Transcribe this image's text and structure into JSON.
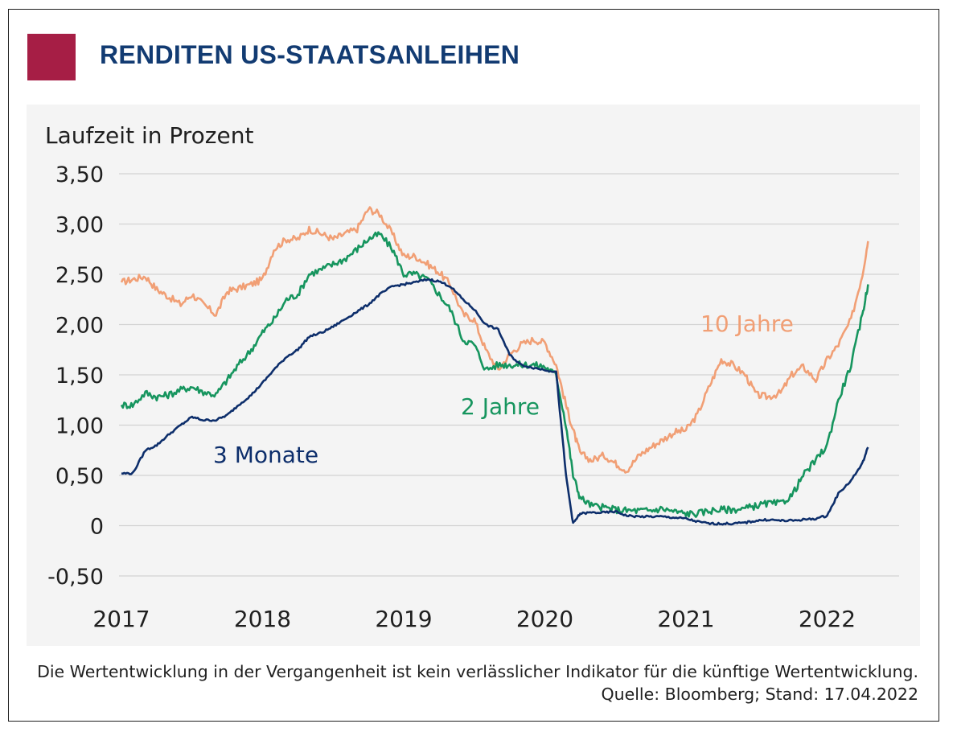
{
  "colors": {
    "accent": "#a61e45",
    "title": "#123b72",
    "panel_bg": "#f4f4f4",
    "grid": "#d2d2d2",
    "axis_text": "#1f1f1f",
    "series_3m": "#0d2e6b",
    "series_2y": "#16955e",
    "series_10y": "#f19f75"
  },
  "header": {
    "title": "RENDITEN US-STAATSANLEIHEN"
  },
  "chart_data": {
    "type": "line",
    "title": "RENDITEN US-STAATSANLEIHEN",
    "ylabel": "Laufzeit in Prozent",
    "xlabel": "",
    "xlim": [
      2017.0,
      2022.35
    ],
    "ylim": [
      -0.5,
      3.5
    ],
    "y_ticks": [
      3.5,
      3.0,
      2.5,
      2.0,
      1.5,
      1.0,
      0.5,
      0,
      -0.5
    ],
    "y_tick_labels": [
      "3,50",
      "3,00",
      "2,50",
      "2,00",
      "1,50",
      "1,00",
      "0,50",
      "0",
      "-0,50"
    ],
    "x_ticks": [
      2017,
      2018,
      2019,
      2020,
      2021,
      2022
    ],
    "x_tick_labels": [
      "2017",
      "2018",
      "2019",
      "2020",
      "2021",
      "2022"
    ],
    "grid": "horizontal",
    "series": [
      {
        "name": "10 Jahre",
        "label": "10 Jahre",
        "color_key": "series_10y",
        "x": [
          2017.0,
          2017.08,
          2017.17,
          2017.25,
          2017.33,
          2017.42,
          2017.5,
          2017.58,
          2017.67,
          2017.75,
          2017.83,
          2017.92,
          2018.0,
          2018.08,
          2018.17,
          2018.25,
          2018.33,
          2018.42,
          2018.5,
          2018.58,
          2018.67,
          2018.75,
          2018.83,
          2018.92,
          2019.0,
          2019.08,
          2019.17,
          2019.25,
          2019.33,
          2019.42,
          2019.5,
          2019.58,
          2019.67,
          2019.75,
          2019.83,
          2019.92,
          2020.0,
          2020.08,
          2020.15,
          2020.2,
          2020.25,
          2020.33,
          2020.42,
          2020.5,
          2020.58,
          2020.67,
          2020.75,
          2020.83,
          2020.92,
          2021.0,
          2021.08,
          2021.17,
          2021.25,
          2021.33,
          2021.42,
          2021.5,
          2021.58,
          2021.67,
          2021.75,
          2021.83,
          2021.92,
          2022.0,
          2022.08,
          2022.17,
          2022.25,
          2022.29
        ],
        "values": [
          2.42,
          2.45,
          2.48,
          2.35,
          2.28,
          2.2,
          2.3,
          2.2,
          2.1,
          2.33,
          2.36,
          2.4,
          2.45,
          2.75,
          2.85,
          2.85,
          2.95,
          2.9,
          2.85,
          2.9,
          2.95,
          3.15,
          3.1,
          2.9,
          2.68,
          2.68,
          2.6,
          2.52,
          2.4,
          2.1,
          2.05,
          1.75,
          1.55,
          1.7,
          1.8,
          1.85,
          1.82,
          1.6,
          1.2,
          0.95,
          0.72,
          0.65,
          0.7,
          0.62,
          0.55,
          0.7,
          0.78,
          0.85,
          0.93,
          0.95,
          1.1,
          1.4,
          1.65,
          1.6,
          1.5,
          1.3,
          1.28,
          1.32,
          1.5,
          1.58,
          1.45,
          1.65,
          1.8,
          2.05,
          2.5,
          2.83
        ]
      },
      {
        "name": "2 Jahre",
        "label": "2 Jahre",
        "color_key": "series_2y",
        "x": [
          2017.0,
          2017.08,
          2017.17,
          2017.25,
          2017.33,
          2017.42,
          2017.5,
          2017.58,
          2017.67,
          2017.75,
          2017.83,
          2017.92,
          2018.0,
          2018.08,
          2018.17,
          2018.25,
          2018.33,
          2018.42,
          2018.5,
          2018.58,
          2018.67,
          2018.75,
          2018.83,
          2018.92,
          2019.0,
          2019.08,
          2019.17,
          2019.25,
          2019.33,
          2019.42,
          2019.5,
          2019.58,
          2019.67,
          2019.75,
          2019.83,
          2019.92,
          2020.0,
          2020.08,
          2020.15,
          2020.2,
          2020.25,
          2020.33,
          2020.42,
          2020.5,
          2020.58,
          2020.67,
          2020.75,
          2020.83,
          2020.92,
          2021.0,
          2021.08,
          2021.17,
          2021.25,
          2021.33,
          2021.42,
          2021.5,
          2021.58,
          2021.67,
          2021.75,
          2021.83,
          2021.92,
          2022.0,
          2022.08,
          2022.17,
          2022.25,
          2022.29
        ],
        "values": [
          1.2,
          1.2,
          1.32,
          1.28,
          1.3,
          1.35,
          1.38,
          1.33,
          1.3,
          1.45,
          1.6,
          1.75,
          1.92,
          2.05,
          2.25,
          2.3,
          2.5,
          2.55,
          2.6,
          2.65,
          2.75,
          2.85,
          2.9,
          2.75,
          2.5,
          2.5,
          2.45,
          2.3,
          2.15,
          1.85,
          1.8,
          1.55,
          1.6,
          1.6,
          1.6,
          1.6,
          1.58,
          1.5,
          1.0,
          0.5,
          0.28,
          0.2,
          0.18,
          0.16,
          0.15,
          0.15,
          0.15,
          0.17,
          0.14,
          0.12,
          0.12,
          0.15,
          0.16,
          0.16,
          0.17,
          0.2,
          0.22,
          0.22,
          0.3,
          0.5,
          0.65,
          0.8,
          1.25,
          1.6,
          2.1,
          2.4
        ]
      },
      {
        "name": "3 Monate",
        "label": "3 Monate",
        "color_key": "series_3m",
        "x": [
          2017.0,
          2017.08,
          2017.17,
          2017.25,
          2017.33,
          2017.42,
          2017.5,
          2017.58,
          2017.67,
          2017.75,
          2017.83,
          2017.92,
          2018.0,
          2018.08,
          2018.17,
          2018.25,
          2018.33,
          2018.42,
          2018.5,
          2018.58,
          2018.67,
          2018.75,
          2018.83,
          2018.92,
          2019.0,
          2019.08,
          2019.17,
          2019.25,
          2019.33,
          2019.42,
          2019.5,
          2019.58,
          2019.67,
          2019.75,
          2019.83,
          2019.92,
          2020.0,
          2020.08,
          2020.15,
          2020.2,
          2020.25,
          2020.33,
          2020.42,
          2020.5,
          2020.58,
          2020.67,
          2020.75,
          2020.83,
          2020.92,
          2021.0,
          2021.08,
          2021.17,
          2021.25,
          2021.33,
          2021.42,
          2021.5,
          2021.58,
          2021.67,
          2021.75,
          2021.83,
          2021.92,
          2022.0,
          2022.08,
          2022.17,
          2022.25,
          2022.29
        ],
        "values": [
          0.52,
          0.52,
          0.75,
          0.8,
          0.9,
          1.0,
          1.08,
          1.05,
          1.05,
          1.1,
          1.2,
          1.3,
          1.42,
          1.55,
          1.68,
          1.75,
          1.88,
          1.92,
          1.98,
          2.05,
          2.13,
          2.2,
          2.3,
          2.38,
          2.4,
          2.42,
          2.45,
          2.43,
          2.38,
          2.25,
          2.15,
          2.0,
          1.95,
          1.7,
          1.6,
          1.57,
          1.55,
          1.53,
          0.5,
          0.02,
          0.12,
          0.13,
          0.13,
          0.14,
          0.1,
          0.09,
          0.09,
          0.09,
          0.08,
          0.07,
          0.04,
          0.02,
          0.02,
          0.02,
          0.03,
          0.05,
          0.06,
          0.05,
          0.05,
          0.06,
          0.07,
          0.1,
          0.32,
          0.45,
          0.62,
          0.78
        ]
      }
    ],
    "annotations": [
      {
        "series": "10 Jahre",
        "text": "10 Jahre"
      },
      {
        "series": "2 Jahre",
        "text": "2 Jahre"
      },
      {
        "series": "3 Monate",
        "text": "3 Monate"
      }
    ]
  },
  "footer": {
    "disclaimer": "Die Wertentwicklung in der Vergangenheit ist kein verlässlicher Indikator für die künftige Wertentwicklung.",
    "source": "Quelle: Bloomberg; Stand: 17.04.2022"
  }
}
